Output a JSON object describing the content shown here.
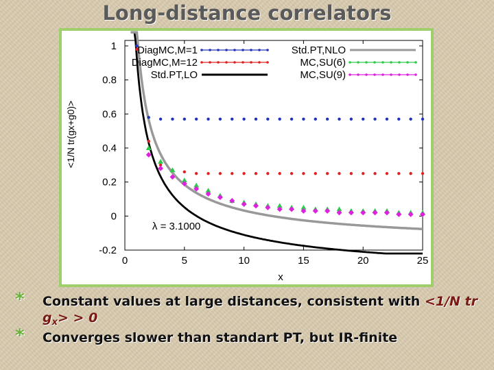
{
  "slide": {
    "title": "Long-distance correlators",
    "bullets": [
      {
        "text_before": "Constant values at large distances, consistent with ",
        "emph_main": "<1/N tr g",
        "emph_sub": "x",
        "emph_after": "> > 0",
        "text_after": ""
      },
      {
        "text_before": "Converges slower than standart PT, but IR-finite"
      }
    ]
  },
  "chart_data": {
    "type": "scatter",
    "xlabel": "x",
    "ylabel": "<1/N tr(gx+g0)>",
    "xlim": [
      0,
      25
    ],
    "ylim": [
      -0.2,
      1.0
    ],
    "xticks": [
      0,
      5,
      10,
      15,
      20,
      25
    ],
    "yticks": [
      -0.2,
      0,
      0.2,
      0.4,
      0.6,
      0.8,
      1
    ],
    "annotation": "λ = 3.1000",
    "legend_position": "top",
    "series": [
      {
        "name": "DiagMC,M=1",
        "kind": "points",
        "color": "#2233bb",
        "x": [
          1,
          2,
          3,
          4,
          5,
          6,
          7,
          8,
          9,
          10,
          11,
          12,
          13,
          14,
          15,
          16,
          17,
          18,
          19,
          20,
          21,
          22,
          23,
          24,
          25
        ],
        "y": [
          1.0,
          0.58,
          0.57,
          0.57,
          0.57,
          0.57,
          0.57,
          0.57,
          0.57,
          0.57,
          0.57,
          0.57,
          0.57,
          0.57,
          0.57,
          0.57,
          0.57,
          0.57,
          0.57,
          0.57,
          0.57,
          0.57,
          0.57,
          0.57,
          0.57
        ]
      },
      {
        "name": "DiagMC,M=12",
        "kind": "points",
        "color": "#dd2222",
        "x": [
          1,
          2,
          3,
          4,
          5,
          6,
          7,
          8,
          9,
          10,
          11,
          12,
          13,
          14,
          15,
          16,
          17,
          18,
          19,
          20,
          21,
          22,
          23,
          24,
          25
        ],
        "y": [
          0.98,
          0.44,
          0.3,
          0.27,
          0.26,
          0.25,
          0.25,
          0.25,
          0.25,
          0.25,
          0.25,
          0.25,
          0.25,
          0.25,
          0.25,
          0.25,
          0.25,
          0.25,
          0.25,
          0.25,
          0.25,
          0.25,
          0.25,
          0.25,
          0.25
        ]
      },
      {
        "name": "Std.PT,LO",
        "kind": "line",
        "color": "#000000",
        "formula": "lo"
      },
      {
        "name": "Std.PT,NLO",
        "kind": "line",
        "color": "#999999",
        "formula": "nlo"
      },
      {
        "name": "MC,SU(6)",
        "kind": "points",
        "color": "#2ccc4a",
        "x": [
          2,
          3,
          4,
          5,
          6,
          7,
          8,
          9,
          10,
          11,
          12,
          13,
          14,
          15,
          16,
          17,
          18,
          19,
          20,
          21,
          22,
          23,
          24,
          25
        ],
        "y": [
          0.4,
          0.32,
          0.27,
          0.21,
          0.18,
          0.15,
          0.12,
          0.09,
          0.08,
          0.07,
          0.06,
          0.06,
          0.05,
          0.05,
          0.04,
          0.04,
          0.04,
          0.03,
          0.03,
          0.03,
          0.03,
          0.02,
          0.02,
          0.02
        ]
      },
      {
        "name": "MC,SU(9)",
        "kind": "points",
        "color": "#dd22dd",
        "x": [
          2,
          3,
          4,
          5,
          6,
          7,
          8,
          9,
          10,
          11,
          12,
          13,
          14,
          15,
          16,
          17,
          18,
          19,
          20,
          21,
          22,
          23,
          24,
          25
        ],
        "y": [
          0.36,
          0.28,
          0.23,
          0.19,
          0.16,
          0.13,
          0.11,
          0.09,
          0.07,
          0.06,
          0.05,
          0.04,
          0.04,
          0.03,
          0.03,
          0.03,
          0.02,
          0.02,
          0.02,
          0.02,
          0.02,
          0.01,
          0.01,
          0.01
        ]
      }
    ]
  }
}
